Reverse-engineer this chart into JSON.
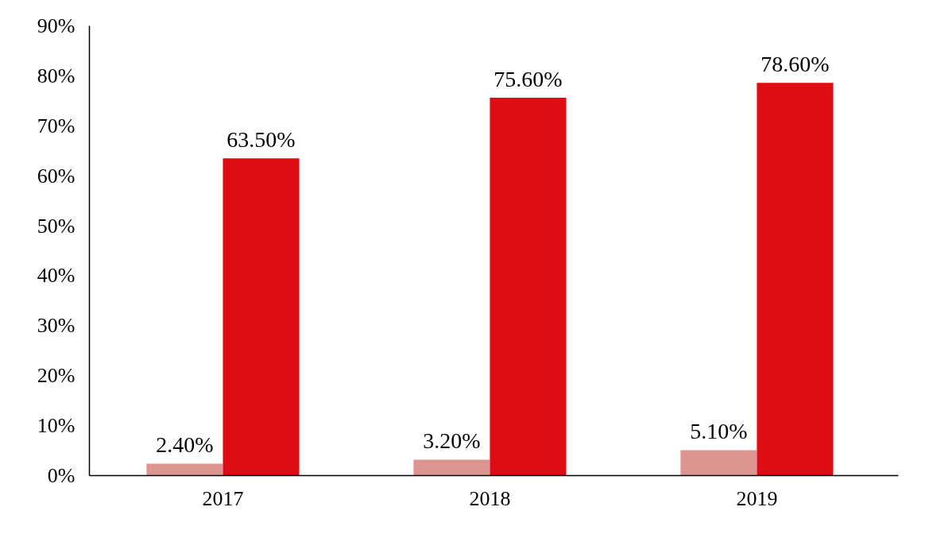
{
  "chart_data": {
    "type": "bar",
    "categories": [
      "2017",
      "2018",
      "2019"
    ],
    "series": [
      {
        "color": "#dc9590",
        "values": [
          2.4,
          3.2,
          5.1
        ],
        "value_labels": [
          "2.40%",
          "3.20%",
          "5.10%"
        ]
      },
      {
        "color": "#e00c14",
        "values": [
          63.5,
          75.6,
          78.6
        ],
        "value_labels": [
          "63.50%",
          "75.60%",
          "78.60%"
        ]
      }
    ],
    "ylim": [
      0,
      90
    ],
    "yticks": [
      {
        "value": 0,
        "label": "0%"
      },
      {
        "value": 10,
        "label": "10%"
      },
      {
        "value": 20,
        "label": "20%"
      },
      {
        "value": 30,
        "label": "30%"
      },
      {
        "value": 40,
        "label": "40%"
      },
      {
        "value": 50,
        "label": "50%"
      },
      {
        "value": 60,
        "label": "60%"
      },
      {
        "value": 70,
        "label": "70%"
      },
      {
        "value": 80,
        "label": "80%"
      },
      {
        "value": 90,
        "label": "90%"
      }
    ],
    "grid": false
  }
}
